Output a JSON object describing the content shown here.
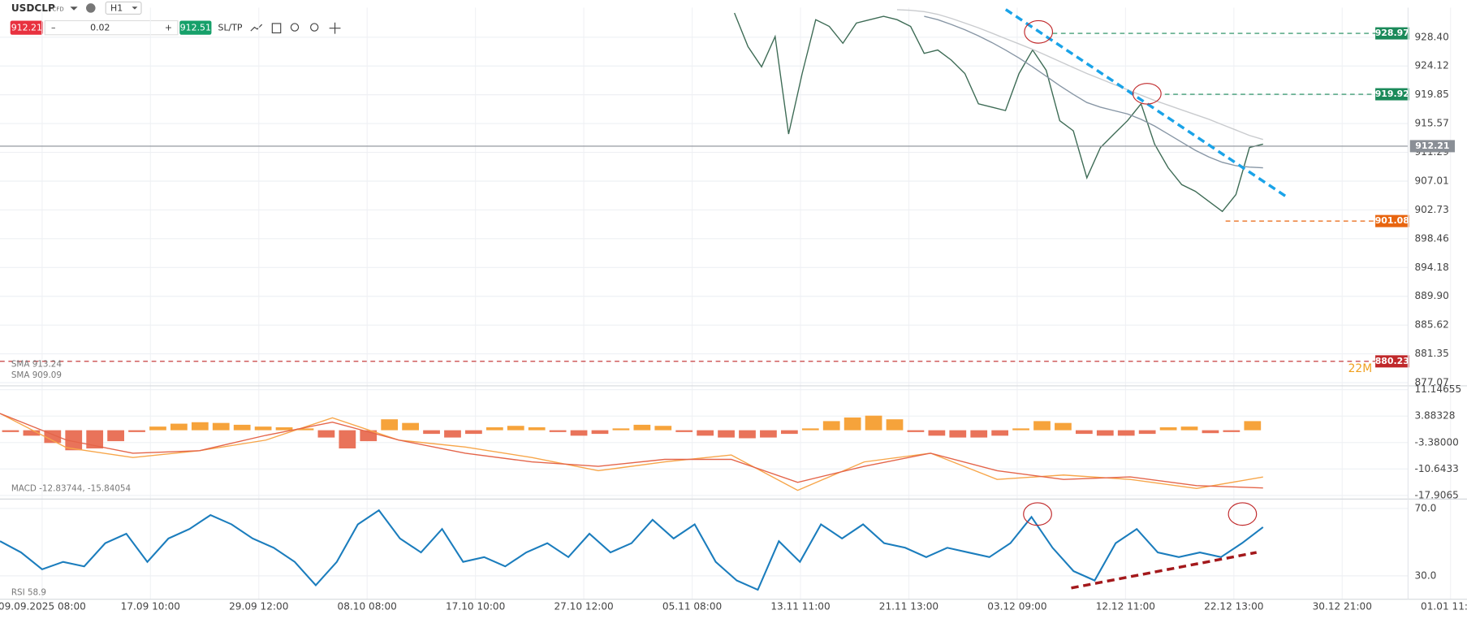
{
  "toolbar": {
    "symbol": "USDCLP",
    "instrument_type": "CFD",
    "timeframe": "H1",
    "sell_price": "912.21",
    "minus": "–",
    "volume": "0.02",
    "plus": "+",
    "buy_price": "912.51",
    "sltp": "SL/TP"
  },
  "time_axis": {
    "labels": [
      "09.09.2025 08:00",
      "17.09 10:00",
      "29.09 12:00",
      "08.10 08:00",
      "17.10 10:00",
      "27.10 12:00",
      "05.11 08:00",
      "13.11 11:00",
      "21.11 13:00",
      "03.12 09:00",
      "12.12 11:00",
      "22.12 13:00",
      "30.12 21:00",
      "01.01 11:00"
    ]
  },
  "chart_data": [
    {
      "type": "line",
      "grid": true,
      "ylim": [
        876.6,
        932.8
      ],
      "yticks": [
        {
          "value": 928.4,
          "label": "928.40"
        },
        924.12,
        919.85,
        915.57,
        911.29,
        907.01,
        902.73,
        898.46,
        894.18,
        {
          "value": 889.9,
          "label": "889.90"
        },
        885.62,
        881.35,
        877.07
      ],
      "series": [
        {
          "color": "#3d6b55",
          "values": [
            932.0,
            927.0,
            924.0,
            928.5,
            914.0,
            923.0,
            931.0,
            930.0,
            927.5,
            930.5,
            931.0,
            931.5,
            931.0,
            930.0,
            926.0,
            926.5,
            925.0,
            923.0,
            918.5,
            918.0,
            917.5,
            923.0,
            926.5,
            923.5,
            916.0,
            914.5,
            907.5,
            912.0,
            914.0,
            916.0,
            918.5,
            912.5,
            909.0,
            906.5,
            905.5,
            904.0,
            902.5,
            905.0,
            912.0,
            912.5
          ]
        },
        {
          "name": "SMA 913.24",
          "color": "#c9cbce",
          "values": [
            null,
            null,
            null,
            null,
            null,
            null,
            null,
            null,
            null,
            null,
            null,
            null,
            932.5,
            932.4,
            932.2,
            931.8,
            931.2,
            930.5,
            929.8,
            929.0,
            928.2,
            927.4,
            926.6,
            925.7,
            924.8,
            923.9,
            923.0,
            922.2,
            921.4,
            920.6,
            919.8,
            919.0,
            918.3,
            917.6,
            916.9,
            916.2,
            915.4,
            914.6,
            913.8,
            913.2
          ]
        },
        {
          "name": "SMA 909.09",
          "color": "#8796a5",
          "values": [
            null,
            null,
            null,
            null,
            null,
            null,
            null,
            null,
            null,
            null,
            null,
            null,
            null,
            null,
            931.5,
            931.0,
            930.3,
            929.5,
            928.6,
            927.6,
            926.5,
            925.3,
            924.0,
            922.6,
            921.2,
            919.9,
            918.7,
            918.0,
            917.5,
            917.0,
            916.2,
            915.2,
            914.0,
            912.8,
            911.6,
            910.6,
            909.8,
            909.3,
            909.1,
            909.0
          ]
        }
      ],
      "levels": [
        {
          "value": 912.21,
          "color": "#8a8f96",
          "style": "solid"
        },
        {
          "value": 928.97,
          "color": "#1b8a5a",
          "style": "dashed"
        },
        {
          "value": 919.92,
          "color": "#1b8a5a",
          "style": "dashed"
        },
        {
          "value": 901.08,
          "color": "#e8650f",
          "style": "dashed"
        },
        {
          "value": 880.23,
          "color": "#c0282a",
          "style": "dashed"
        }
      ],
      "countdown": "22M"
    },
    {
      "type": "macd",
      "grid": true,
      "ylim": [
        -18.9,
        12.2
      ],
      "yticks": [
        11.14655,
        3.88328,
        {
          "value": -3.38,
          "label": "-3.38000"
        },
        -10.6433,
        -17.9065
      ],
      "label": "MACD -12.83744, -15.84054",
      "histogram": {
        "positive_color": "#f6a33b",
        "negative_color": "#e9735a",
        "values": [
          -0.5,
          -1.5,
          -3.5,
          -5.5,
          -5,
          -3,
          -0.5,
          1,
          1.8,
          2.2,
          2,
          1.5,
          1,
          0.8,
          0.5,
          -2,
          -5,
          -3,
          3,
          2,
          -1,
          -2,
          -1,
          0.8,
          1.2,
          0.8,
          -0.5,
          -1.5,
          -1,
          0.5,
          1.5,
          1.2,
          -0.5,
          -1.5,
          -2,
          -2.2,
          -2,
          -1,
          0.5,
          2.5,
          3.5,
          4,
          3,
          -0.5,
          -1.5,
          -2,
          -2,
          -1.5,
          0.5,
          2.5,
          2,
          -1,
          -1.5,
          -1.5,
          -1,
          0.8,
          1,
          -0.8,
          -0.5,
          2.5
        ]
      },
      "series": [
        {
          "color": "#f7a64a",
          "values": [
            4.6,
            -4.8,
            -7.5,
            -5.6,
            -2.7,
            3.4,
            -2.7,
            -4.6,
            -7.5,
            -11.1,
            -8.7,
            -6.8,
            -16.5,
            -8.7,
            -6.3,
            -13.5,
            -12.3,
            -13.5,
            -16,
            -12.84
          ]
        },
        {
          "color": "#e4654a",
          "values": [
            4.6,
            -2.7,
            -6.3,
            -5.6,
            -1.4,
            2.2,
            -2.7,
            -6.3,
            -8.7,
            -9.9,
            -8,
            -8,
            -14.3,
            -9.9,
            -6.3,
            -11.1,
            -13.5,
            -12.8,
            -15.2,
            -15.84
          ]
        }
      ]
    },
    {
      "type": "line",
      "grid": true,
      "ylim": [
        16.1,
        75.6
      ],
      "yticks": [
        {
          "value": 70,
          "label": "70.0"
        },
        {
          "value": 30,
          "label": "30.0"
        }
      ],
      "series": [
        {
          "name": "RSI 58.9",
          "color": "#1b7dbd",
          "values": [
            50.6,
            43.9,
            33.9,
            38.3,
            35.6,
            49.4,
            55,
            38.3,
            52.2,
            57.8,
            66.1,
            60.6,
            52.2,
            46.7,
            38.3,
            24.4,
            38.3,
            60.6,
            68.9,
            52.2,
            43.9,
            57.8,
            38.3,
            41.1,
            35.6,
            43.9,
            49.4,
            41.1,
            55,
            43.9,
            49.4,
            63.3,
            52.2,
            60.6,
            38.3,
            27.2,
            21.7,
            50.6,
            38.3,
            60.6,
            52.2,
            60.6,
            49.4,
            46.7,
            41.1,
            46.7,
            43.9,
            41.1,
            49.4,
            65,
            46.7,
            32.8,
            27.2,
            49.4,
            57.8,
            43.9,
            41.1,
            43.9,
            41.1,
            49.4,
            58.9
          ]
        }
      ]
    }
  ]
}
